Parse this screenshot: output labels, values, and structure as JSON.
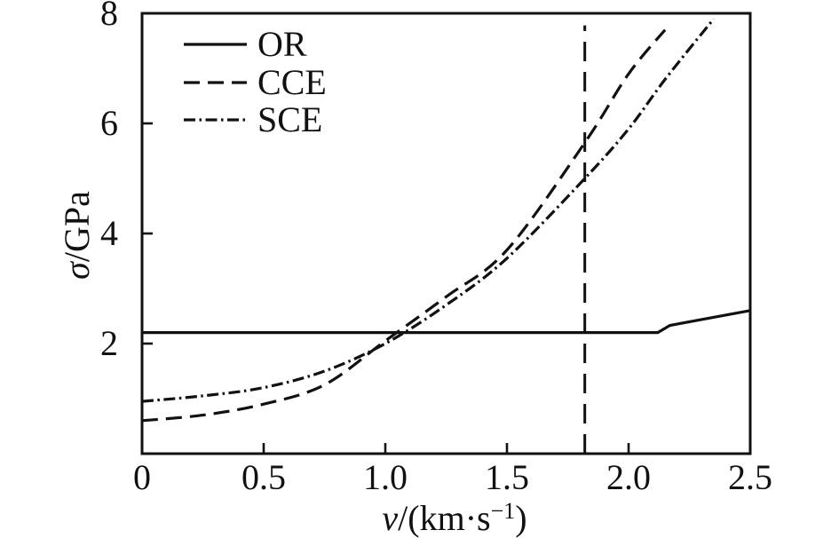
{
  "figure": {
    "background": "#ffffff",
    "line_color": "#111111"
  },
  "chart_data": {
    "type": "line",
    "title": "",
    "xlabel": "v/(km·s⁻¹)",
    "ylabel": "σ/GPa",
    "xlabel_parts": {
      "var": "v",
      "pre": "/(km·s",
      "sup": "−1",
      "post": ")"
    },
    "ylabel_parts": {
      "var": "σ",
      "rest": "/GPa"
    },
    "xlim": [
      0,
      2.5
    ],
    "ylim": [
      0,
      8
    ],
    "x_ticks": [
      0,
      0.5,
      1.0,
      1.5,
      2.0,
      2.5
    ],
    "x_tick_labels": [
      "0",
      "0.5",
      "1.0",
      "1.5",
      "2.0",
      "2.5"
    ],
    "y_ticks": [
      2,
      4,
      6,
      8
    ],
    "y_tick_labels": [
      "2",
      "4",
      "6",
      "8"
    ],
    "grid": false,
    "frame": "box",
    "legend_position": "upper-left-inside",
    "series": [
      {
        "name": "OR",
        "line_style": "solid",
        "smooth": false,
        "points": [
          [
            0,
            2.2
          ],
          [
            2.12,
            2.2
          ],
          [
            2.17,
            2.33
          ],
          [
            2.5,
            2.6
          ]
        ]
      },
      {
        "name": "CCE",
        "line_style": "dashed",
        "smooth": true,
        "points": [
          [
            0,
            0.6
          ],
          [
            0.25,
            0.7
          ],
          [
            0.5,
            0.9
          ],
          [
            0.75,
            1.25
          ],
          [
            1.0,
            2.05
          ],
          [
            1.25,
            2.85
          ],
          [
            1.5,
            3.7
          ],
          [
            1.82,
            5.65
          ],
          [
            2.0,
            6.9
          ],
          [
            2.15,
            7.7
          ]
        ]
      },
      {
        "name": "SCE",
        "line_style": "dashdot",
        "smooth": true,
        "points": [
          [
            0,
            0.95
          ],
          [
            0.25,
            1.05
          ],
          [
            0.5,
            1.2
          ],
          [
            0.75,
            1.5
          ],
          [
            1.0,
            2.0
          ],
          [
            1.25,
            2.7
          ],
          [
            1.5,
            3.55
          ],
          [
            1.82,
            5.0
          ],
          [
            2.0,
            5.9
          ],
          [
            2.15,
            6.8
          ],
          [
            2.35,
            7.9
          ]
        ]
      }
    ],
    "annotations": [
      {
        "type": "vline",
        "x": 1.82,
        "y_range": [
          0,
          7.78
        ],
        "line_style": "long-dashed"
      }
    ]
  }
}
